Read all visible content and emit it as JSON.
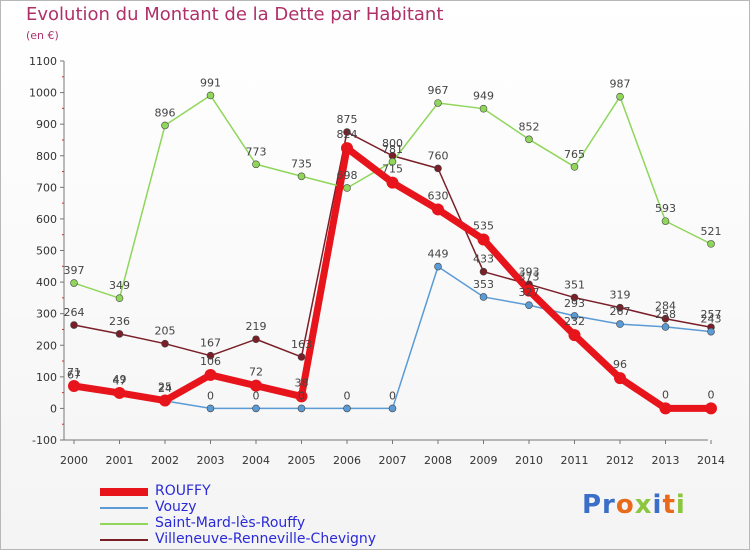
{
  "header": {
    "title": "Evolution du Montant de la Dette par Habitant",
    "unit": "(en €)"
  },
  "logo": {
    "text_a": "Pr",
    "text_b": "o",
    "text_c": "x",
    "text_d": "i",
    "text_e": "t",
    "text_f": "i"
  },
  "chart_data": {
    "type": "line",
    "x": [
      "2000",
      "2001",
      "2002",
      "2003",
      "2004",
      "2005",
      "2006",
      "2007",
      "2008",
      "2009",
      "2010",
      "2011",
      "2012",
      "2013",
      "2014"
    ],
    "ylim": [
      -100,
      1100
    ],
    "yticks": [
      -100,
      0,
      100,
      200,
      300,
      400,
      500,
      600,
      700,
      800,
      900,
      1000,
      1100
    ],
    "grid": false,
    "legend": "bottom-left",
    "series": [
      {
        "name": "ROUFFY",
        "color": "#e8141b",
        "values": [
          71,
          49,
          25,
          106,
          72,
          38,
          824,
          715,
          630,
          535,
          373,
          232,
          96,
          0,
          0
        ],
        "labels": [
          "71",
          "49",
          "25",
          "106",
          "72",
          "38",
          "824",
          "715",
          "630",
          "535",
          "373",
          "232",
          "96",
          "0",
          "0"
        ]
      },
      {
        "name": "Vouzy",
        "color": "#5b9bd5",
        "values": [
          67,
          47,
          24,
          0,
          0,
          0,
          0,
          0,
          449,
          353,
          327,
          293,
          267,
          258,
          243
        ],
        "labels": [
          "67",
          "47",
          "24",
          "0",
          "0",
          "0",
          "0",
          "0",
          "449",
          "353",
          "327",
          "293",
          "267",
          "258",
          "243"
        ]
      },
      {
        "name": "Saint-Mard-lès-Rouffy",
        "color": "#8fd65a",
        "values": [
          397,
          349,
          896,
          991,
          773,
          735,
          698,
          781,
          967,
          949,
          852,
          765,
          987,
          593,
          521
        ],
        "labels": [
          "397",
          "349",
          "896",
          "991",
          "773",
          "735",
          "698",
          "781",
          "967",
          "949",
          "852",
          "765",
          "987",
          "593",
          "521"
        ]
      },
      {
        "name": "Villeneuve-Renneville-Chevigny",
        "color": "#7a1f28",
        "values": [
          264,
          236,
          205,
          167,
          219,
          163,
          875,
          800,
          760,
          433,
          393,
          351,
          319,
          284,
          257
        ],
        "labels": [
          "264",
          "236",
          "205",
          "167",
          "219",
          "163",
          "875",
          "800",
          "760",
          "433",
          "393",
          "351",
          "319",
          "284",
          "257"
        ]
      }
    ]
  }
}
